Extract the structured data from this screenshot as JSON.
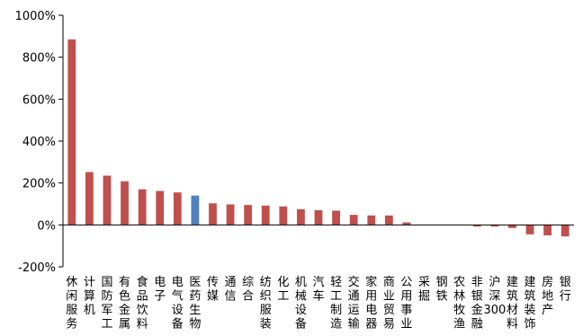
{
  "chart_data": {
    "type": "bar",
    "title": "",
    "xlabel": "",
    "ylabel": "",
    "ylim": [
      -200,
      1000
    ],
    "yticks": [
      "1000%",
      "800%",
      "600%",
      "400%",
      "200%",
      "0%",
      "-200%"
    ],
    "ytick_values": [
      1000,
      800,
      600,
      400,
      200,
      0,
      -200
    ],
    "categories": [
      "休闲服务",
      "计算机",
      "国防军工",
      "有色金属",
      "食品饮料",
      "电子",
      "电气设备",
      "医药生物",
      "传媒",
      "通信",
      "综合",
      "纺织服装",
      "化工",
      "机械设备",
      "汽车",
      "轻工制造",
      "交通运输",
      "家用电器",
      "商业贸易",
      "公用事业",
      "采掘",
      "钢铁",
      "农林牧渔",
      "非银金融",
      "沪深300",
      "建筑材料",
      "建筑装饰",
      "房地产",
      "银行"
    ],
    "values": [
      885,
      252,
      235,
      208,
      170,
      162,
      155,
      140,
      103,
      98,
      95,
      92,
      88,
      75,
      70,
      68,
      48,
      45,
      45,
      12,
      0,
      0,
      0,
      -8,
      -8,
      -15,
      -45,
      -50,
      -55
    ],
    "highlight_category": "医药生物",
    "colors": {
      "default": "#C0504D",
      "highlight": "#4F81BD"
    },
    "grid": false,
    "legend": "none"
  }
}
